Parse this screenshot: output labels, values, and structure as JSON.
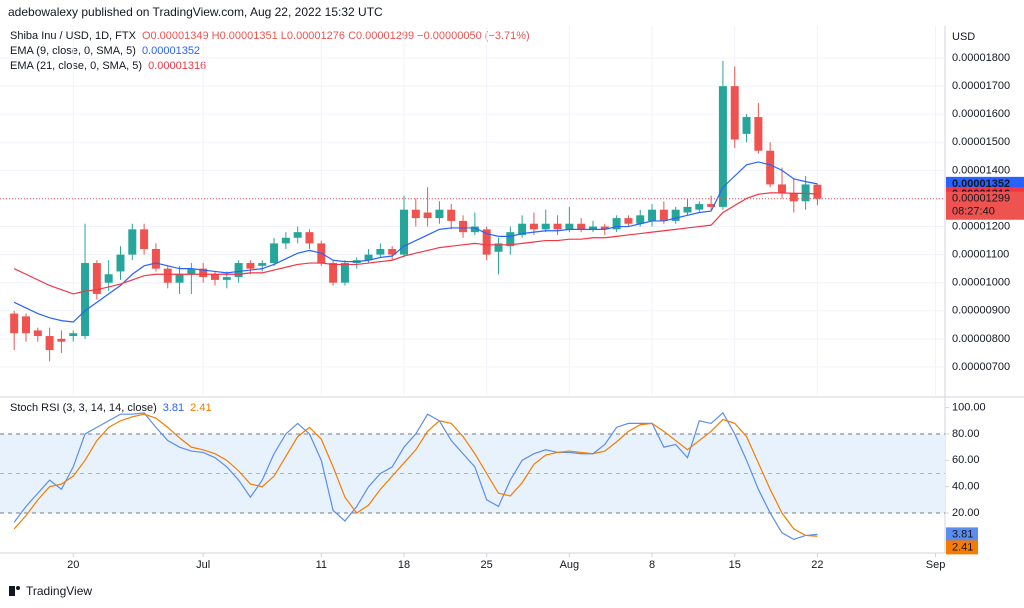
{
  "header": {
    "attribution": "adebowalexy published on TradingView.com, Aug 22, 2022 15:32 UTC",
    "symbol": "Shiba Inu / USD, 1D, FTX",
    "ohlc": "O0.00001349 H0.00001351 L0.00001276 C0.00001299 −0.00000050 (−3.71%)"
  },
  "chart_data": [
    {
      "type": "candlestick",
      "y_axis_label": "USD",
      "up_color": "#26a69a",
      "down_color": "#ef5350",
      "grid": true,
      "xlim": [
        -1.2,
        78.8
      ],
      "ylim": [
        6e-06,
        1.9e-05
      ],
      "yticks": [
        {
          "value": 7e-06,
          "label": "0.00000700"
        },
        {
          "value": 8e-06,
          "label": "0.00000800"
        },
        {
          "value": 9e-06,
          "label": "0.00000900"
        },
        {
          "value": 1e-05,
          "label": "0.00001000"
        },
        {
          "value": 1.1e-05,
          "label": "0.00001100"
        },
        {
          "value": 1.2e-05,
          "label": "0.00001200"
        },
        {
          "value": 1.3e-05,
          "label": "0.00001300"
        },
        {
          "value": 1.4e-05,
          "label": "0.00001400"
        },
        {
          "value": 1.5e-05,
          "label": "0.00001500"
        },
        {
          "value": 1.6e-05,
          "label": "0.00001600"
        },
        {
          "value": 1.7e-05,
          "label": "0.00001700"
        },
        {
          "value": 1.8e-05,
          "label": "0.00001800"
        }
      ],
      "open": [
        8.9e-06,
        8.8e-06,
        8.3e-06,
        8.1e-06,
        8e-06,
        8.1e-06,
        8.1e-06,
        1.07e-05,
        1e-05,
        1.04e-05,
        1.1e-05,
        1.19e-05,
        1.12e-05,
        1.05e-05,
        1e-05,
        1.03e-05,
        1.05e-05,
        1.03e-05,
        1.01e-05,
        1.02e-05,
        1.07e-05,
        1.06e-05,
        1.07e-05,
        1.14e-05,
        1.16e-05,
        1.18e-05,
        1.14e-05,
        1.07e-05,
        1e-05,
        1.07e-05,
        1.08e-05,
        1.1e-05,
        1.12e-05,
        1.1e-05,
        1.26e-05,
        1.25e-05,
        1.23e-05,
        1.26e-05,
        1.22e-05,
        1.18e-05,
        1.19e-05,
        1.11e-05,
        1.13e-05,
        1.17e-05,
        1.21e-05,
        1.19e-05,
        1.21e-05,
        1.19e-05,
        1.21e-05,
        1.19e-05,
        1.2e-05,
        1.19e-05,
        1.23e-05,
        1.21e-05,
        1.22e-05,
        1.26e-05,
        1.22e-05,
        1.25e-05,
        1.26e-05,
        1.28e-05,
        1.27e-05,
        1.7e-05,
        1.53e-05,
        1.59e-05,
        1.47e-05,
        1.35e-05,
        1.32e-05,
        1.29e-05,
        1.349e-05
      ],
      "high": [
        9e-06,
        8.9e-06,
        8.4e-06,
        8.4e-06,
        8.3e-06,
        8.3e-06,
        1.21e-05,
        1.08e-05,
        1.08e-05,
        1.13e-05,
        1.21e-05,
        1.21e-05,
        1.14e-05,
        1.06e-05,
        1.06e-05,
        1.07e-05,
        1.07e-05,
        1.04e-05,
        1.04e-05,
        1.08e-05,
        1.08e-05,
        1.08e-05,
        1.16e-05,
        1.18e-05,
        1.2e-05,
        1.19e-05,
        1.15e-05,
        1.08e-05,
        1.08e-05,
        1.09e-05,
        1.12e-05,
        1.14e-05,
        1.13e-05,
        1.31e-05,
        1.3e-05,
        1.34e-05,
        1.29e-05,
        1.28e-05,
        1.24e-05,
        1.25e-05,
        1.2e-05,
        1.16e-05,
        1.2e-05,
        1.24e-05,
        1.25e-05,
        1.26e-05,
        1.24e-05,
        1.27e-05,
        1.23e-05,
        1.22e-05,
        1.21e-05,
        1.24e-05,
        1.24e-05,
        1.26e-05,
        1.28e-05,
        1.29e-05,
        1.27e-05,
        1.3e-05,
        1.29e-05,
        1.31e-05,
        1.79e-05,
        1.77e-05,
        1.6e-05,
        1.64e-05,
        1.5e-05,
        1.41e-05,
        1.37e-05,
        1.38e-05,
        1.351e-05
      ],
      "low": [
        7.6e-06,
        7.9e-06,
        7.9e-06,
        7.2e-06,
        7.5e-06,
        7.9e-06,
        8e-06,
        9.4e-06,
        9.7e-06,
        1.01e-05,
        1.08e-05,
        1.1e-05,
        1.04e-05,
        9.8e-06,
        9.6e-06,
        9.6e-06,
        1e-05,
        9.9e-06,
        9.8e-06,
        1e-05,
        1.03e-05,
        1.04e-05,
        1.06e-05,
        1.12e-05,
        1.14e-05,
        1.12e-05,
        1.06e-05,
        9.9e-06,
        9.9e-06,
        1.05e-05,
        1.07e-05,
        1.09e-05,
        1.08e-05,
        1.09e-05,
        1.2e-05,
        1.2e-05,
        1.21e-05,
        1.19e-05,
        1.16e-05,
        1.17e-05,
        1.08e-05,
        1.03e-05,
        1.1e-05,
        1.16e-05,
        1.17e-05,
        1.18e-05,
        1.17e-05,
        1.18e-05,
        1.18e-05,
        1.18e-05,
        1.17e-05,
        1.18e-05,
        1.2e-05,
        1.2e-05,
        1.2e-05,
        1.21e-05,
        1.21e-05,
        1.24e-05,
        1.25e-05,
        1.26e-05,
        1.26e-05,
        1.48e-05,
        1.5e-05,
        1.46e-05,
        1.34e-05,
        1.3e-05,
        1.25e-05,
        1.26e-05,
        1.276e-05
      ],
      "close": [
        8.2e-06,
        8.2e-06,
        8.1e-06,
        7.6e-06,
        7.9e-06,
        8.2e-06,
        1.07e-05,
        9.6e-06,
        1.03e-05,
        1.1e-05,
        1.19e-05,
        1.12e-05,
        1.05e-05,
        1e-05,
        1.03e-05,
        1.05e-05,
        1.02e-05,
        1.01e-05,
        1.02e-05,
        1.07e-05,
        1.05e-05,
        1.07e-05,
        1.14e-05,
        1.16e-05,
        1.18e-05,
        1.14e-05,
        1.07e-05,
        1e-05,
        1.07e-05,
        1.08e-05,
        1.1e-05,
        1.12e-05,
        1.1e-05,
        1.26e-05,
        1.23e-05,
        1.23e-05,
        1.26e-05,
        1.22e-05,
        1.18e-05,
        1.2e-05,
        1.1e-05,
        1.14e-05,
        1.18e-05,
        1.21e-05,
        1.19e-05,
        1.21e-05,
        1.19e-05,
        1.21e-05,
        1.19e-05,
        1.2e-05,
        1.19e-05,
        1.23e-05,
        1.21e-05,
        1.24e-05,
        1.26e-05,
        1.22e-05,
        1.26e-05,
        1.27e-05,
        1.28e-05,
        1.27e-05,
        1.7e-05,
        1.51e-05,
        1.59e-05,
        1.47e-05,
        1.35e-05,
        1.32e-05,
        1.29e-05,
        1.35e-05,
        1.299e-05
      ],
      "last_close_label": "0.00001299",
      "countdown": "08:27:40",
      "series": [
        {
          "name": "EMA (9, close, 0, SMA, 5)",
          "color": "#2962ff",
          "last_label": "0.00001352",
          "values": [
            9.3e-06,
            9.1e-06,
            8.9e-06,
            8.75e-06,
            8.65e-06,
            8.6e-06,
            9e-06,
            9.3e-06,
            9.6e-06,
            9.9e-06,
            1.03e-05,
            1.06e-05,
            1.07e-05,
            1.06e-05,
            1.05e-05,
            1.05e-05,
            1.045e-05,
            1.04e-05,
            1.035e-05,
            1.04e-05,
            1.045e-05,
            1.05e-05,
            1.065e-05,
            1.085e-05,
            1.105e-05,
            1.115e-05,
            1.105e-05,
            1.08e-05,
            1.075e-05,
            1.075e-05,
            1.08e-05,
            1.09e-05,
            1.095e-05,
            1.13e-05,
            1.15e-05,
            1.17e-05,
            1.19e-05,
            1.195e-05,
            1.195e-05,
            1.195e-05,
            1.175e-05,
            1.165e-05,
            1.165e-05,
            1.175e-05,
            1.18e-05,
            1.185e-05,
            1.185e-05,
            1.19e-05,
            1.19e-05,
            1.19e-05,
            1.19e-05,
            1.2e-05,
            1.2e-05,
            1.21e-05,
            1.22e-05,
            1.22e-05,
            1.23e-05,
            1.24e-05,
            1.25e-05,
            1.255e-05,
            1.34e-05,
            1.38e-05,
            1.42e-05,
            1.43e-05,
            1.42e-05,
            1.4e-05,
            1.37e-05,
            1.36e-05,
            1.352e-05
          ]
        },
        {
          "name": "EMA (21, close, 0, SMA, 5)",
          "color": "#f23645",
          "last_label": "0.00001316",
          "values": [
            1.05e-05,
            1.03e-05,
            1.01e-05,
            9.9e-06,
            9.75e-06,
            9.6e-06,
            9.7e-06,
            9.75e-06,
            9.85e-06,
            9.95e-06,
            1.01e-05,
            1.025e-05,
            1.03e-05,
            1.03e-05,
            1.03e-05,
            1.03e-05,
            1.03e-05,
            1.03e-05,
            1.03e-05,
            1.03e-05,
            1.035e-05,
            1.035e-05,
            1.045e-05,
            1.055e-05,
            1.065e-05,
            1.07e-05,
            1.07e-05,
            1.065e-05,
            1.065e-05,
            1.065e-05,
            1.07e-05,
            1.075e-05,
            1.08e-05,
            1.095e-05,
            1.105e-05,
            1.115e-05,
            1.125e-05,
            1.13e-05,
            1.135e-05,
            1.14e-05,
            1.135e-05,
            1.135e-05,
            1.135e-05,
            1.14e-05,
            1.145e-05,
            1.15e-05,
            1.15e-05,
            1.155e-05,
            1.155e-05,
            1.16e-05,
            1.16e-05,
            1.165e-05,
            1.17e-05,
            1.175e-05,
            1.18e-05,
            1.185e-05,
            1.19e-05,
            1.195e-05,
            1.2e-05,
            1.205e-05,
            1.25e-05,
            1.275e-05,
            1.3e-05,
            1.315e-05,
            1.32e-05,
            1.32e-05,
            1.318e-05,
            1.318e-05,
            1.316e-05
          ]
        }
      ]
    },
    {
      "type": "line",
      "title": "Stoch RSI (3, 3, 14, 14, close)",
      "xlim": [
        -1.2,
        78.8
      ],
      "ylim": [
        -5,
        105
      ],
      "band": [
        20,
        80
      ],
      "midline": 50,
      "band_color": "#e8f2fc",
      "yticks": [
        {
          "value": 20,
          "label": "20.00"
        },
        {
          "value": 40,
          "label": "40.00"
        },
        {
          "value": 60,
          "label": "60.00"
        },
        {
          "value": 80,
          "label": "80.00"
        },
        {
          "value": 100,
          "label": "100.00"
        }
      ],
      "xticks": [
        {
          "value": 5,
          "label": "20"
        },
        {
          "value": 16,
          "label": "Jul"
        },
        {
          "value": 26,
          "label": "11"
        },
        {
          "value": 33,
          "label": "18"
        },
        {
          "value": 40,
          "label": "25"
        },
        {
          "value": 47,
          "label": "Aug"
        },
        {
          "value": 54,
          "label": "8"
        },
        {
          "value": 61,
          "label": "15"
        },
        {
          "value": 68,
          "label": "22"
        },
        {
          "value": 78,
          "label": "Sep"
        }
      ],
      "series": [
        {
          "color": "#5b8def",
          "values": [
            13,
            25,
            35,
            45,
            38,
            55,
            80,
            85,
            90,
            95,
            95,
            96,
            85,
            75,
            70,
            67,
            66,
            62,
            55,
            45,
            32,
            45,
            65,
            80,
            88,
            80,
            60,
            22,
            14,
            25,
            40,
            50,
            55,
            70,
            80,
            95,
            90,
            75,
            65,
            55,
            30,
            25,
            45,
            60,
            65,
            68,
            66,
            66,
            65,
            65,
            72,
            85,
            88,
            88,
            88,
            70,
            72,
            62,
            90,
            88,
            96,
            80,
            60,
            38,
            20,
            5,
            0,
            3,
            3.81
          ]
        },
        {
          "color": "#f57c00",
          "values": [
            8,
            18,
            30,
            40,
            42,
            48,
            60,
            75,
            85,
            90,
            93,
            95,
            92,
            85,
            77,
            70,
            68,
            65,
            60,
            52,
            42,
            40,
            48,
            63,
            78,
            85,
            76,
            55,
            32,
            20,
            26,
            38,
            48,
            58,
            68,
            82,
            90,
            88,
            78,
            65,
            50,
            35,
            33,
            43,
            57,
            64,
            66,
            67,
            66,
            65,
            67,
            74,
            82,
            87,
            88,
            82,
            75,
            68,
            75,
            82,
            91,
            88,
            78,
            58,
            38,
            20,
            8,
            3,
            2.41
          ]
        }
      ]
    }
  ],
  "branding": "TradingView"
}
